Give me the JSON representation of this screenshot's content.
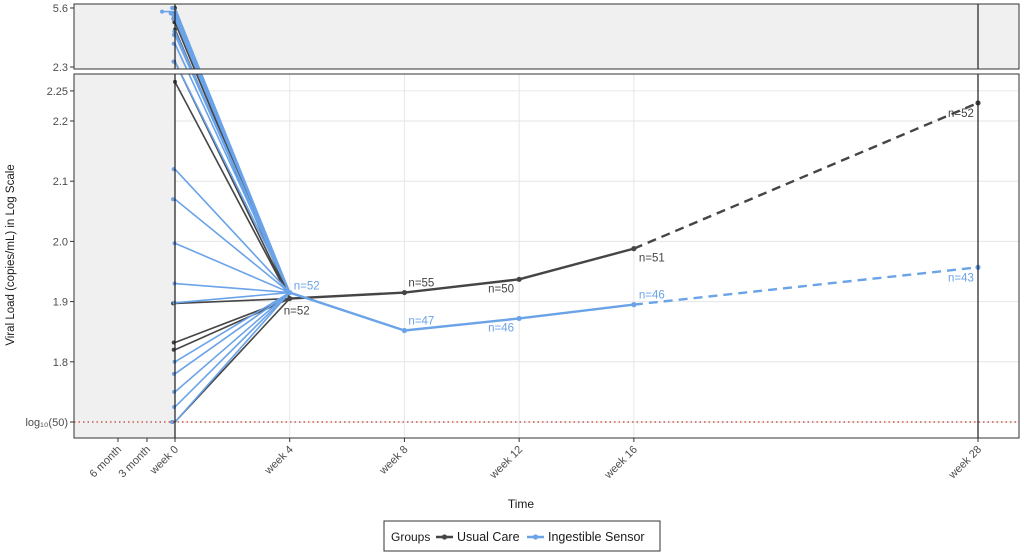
{
  "chart_data": {
    "type": "line",
    "xlabel": "Time",
    "ylabel": "Viral Load (copies/mL) in Log Scale",
    "x_ticks": [
      "6 month",
      "3 month",
      "week 0",
      "week 4",
      "week 8",
      "week 12",
      "week 16",
      "week 28"
    ],
    "x_tick_weeks": [
      -26,
      -13,
      0,
      4,
      8,
      12,
      16,
      28
    ],
    "top_panel": {
      "ylim": [
        2.3,
        5.6
      ],
      "y_ticks": [
        "2.3",
        "5.6"
      ]
    },
    "main_panel": {
      "ylim": [
        1.7,
        2.27
      ],
      "y_ticks": [
        {
          "value": 1.7,
          "label": "log₁₀(50)"
        },
        {
          "value": 1.8,
          "label": "1.8"
        },
        {
          "value": 1.9,
          "label": "1.9"
        },
        {
          "value": 2.0,
          "label": "2.0"
        },
        {
          "value": 2.1,
          "label": "2.1"
        },
        {
          "value": 2.2,
          "label": "2.2"
        },
        {
          "value": 2.25,
          "label": "2.25"
        }
      ]
    },
    "reference_line": {
      "value": 1.7,
      "style": "dotted",
      "color": "#c0392b"
    },
    "legend": {
      "title": "Groups",
      "placement": "bottom"
    },
    "series": [
      {
        "name": "Usual Care",
        "color": "#454545",
        "solid": {
          "x": [
            4,
            8,
            12,
            16
          ],
          "y": [
            1.905,
            1.915,
            1.937,
            1.988
          ],
          "labels": [
            "n=52",
            "n=55",
            "n=50",
            "n=51"
          ]
        },
        "dashed": {
          "x": [
            16,
            28
          ],
          "y": [
            1.988,
            2.23
          ]
        },
        "end": {
          "x": 28,
          "y": 2.23,
          "label": "n=52"
        },
        "baseline_main": [
          {
            "y": 2.265,
            "x_start": 0
          },
          {
            "y": 1.897,
            "x_start": -0.9
          },
          {
            "y": 1.832,
            "x_start": -0.6
          },
          {
            "y": 1.82,
            "x_start": -0.6
          },
          {
            "y": 1.7,
            "x_start": -1.3
          }
        ],
        "baseline_top": [
          {
            "y": 5.6,
            "x_start": 0
          },
          {
            "y": 5.3,
            "x_start": -0.4
          },
          {
            "y": 5.0,
            "x_start": -0.7
          },
          {
            "y": 4.8,
            "x_start": -0.3
          },
          {
            "y": 2.6,
            "x_start": -0.4
          },
          {
            "y": 4.4,
            "x_start": 0
          }
        ]
      },
      {
        "name": "Ingestible Sensor",
        "color": "#6aa3e8",
        "solid": {
          "x": [
            4,
            8,
            12,
            16
          ],
          "y": [
            1.915,
            1.852,
            1.872,
            1.895
          ],
          "labels": [
            "n=52",
            "n=47",
            "n=46",
            "n=46"
          ]
        },
        "dashed": {
          "x": [
            16,
            28
          ],
          "y": [
            1.895,
            1.957
          ]
        },
        "end": {
          "x": 28,
          "y": 1.957,
          "label": "n=43"
        },
        "baseline_main": [
          {
            "y": 2.12,
            "x_start": -0.6
          },
          {
            "y": 2.07,
            "x_start": -0.9
          },
          {
            "y": 1.997,
            "x_start": -0.2
          },
          {
            "y": 1.93,
            "x_start": -0.2
          },
          {
            "y": 1.898,
            "x_start": -0.2
          },
          {
            "y": 1.8,
            "x_start": -0.2
          },
          {
            "y": 1.78,
            "x_start": -0.5
          },
          {
            "y": 1.75,
            "x_start": -0.4
          },
          {
            "y": 1.725,
            "x_start": -0.4
          },
          {
            "y": 1.7,
            "x_start": -1.2
          }
        ],
        "baseline_top": [
          {
            "y": 5.6,
            "x_start": -1.3
          },
          {
            "y": 5.3,
            "x_start": -2.0
          },
          {
            "y": 5.2,
            "x_start": -0.8
          },
          {
            "y": 5.0,
            "x_start": -0.5
          },
          {
            "y": 4.3,
            "x_start": -0.3
          },
          {
            "y": 4.1,
            "x_start": -0.5
          },
          {
            "y": 3.6,
            "x_start": -0.6
          },
          {
            "y": 2.6,
            "x_start": -0.7
          },
          {
            "y": 5.4,
            "x_start": -6.0
          }
        ]
      }
    ]
  }
}
